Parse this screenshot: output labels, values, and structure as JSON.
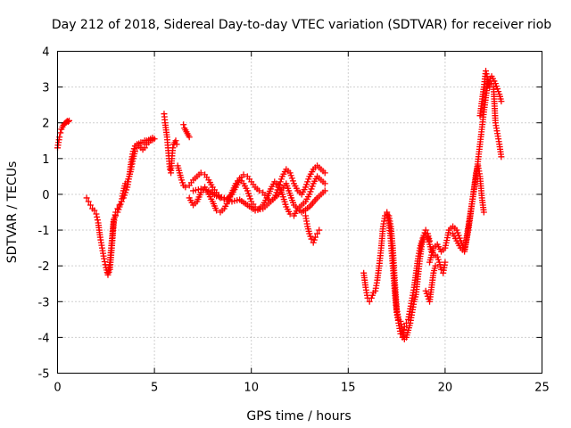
{
  "chart_data": {
    "type": "scatter",
    "title": "Day 212 of 2018, Sidereal Day-to-day VTEC variation (SDTVAR) for receiver riob",
    "xlabel": "GPS time / hours",
    "ylabel": "SDTVAR / TECUs",
    "xlim": [
      0,
      25
    ],
    "ylim": [
      -5,
      4
    ],
    "xticks": [
      0,
      5,
      10,
      15,
      20,
      25
    ],
    "xtick_labels": [
      "0",
      "5",
      "10",
      "15",
      "20",
      "25"
    ],
    "yticks": [
      -5,
      -4,
      -3,
      -2,
      -1,
      0,
      1,
      2,
      3,
      4
    ],
    "ytick_labels": [
      "-5",
      "-4",
      "-3",
      "-2",
      "-1",
      "0",
      "1",
      "2",
      "3",
      "4"
    ],
    "grid": true,
    "marker": "+",
    "color": "#ff0000",
    "series": [
      {
        "name": "SDTVAR",
        "segments": [
          {
            "x": [
              0.0,
              0.05,
              0.1,
              0.15,
              0.2,
              0.25,
              0.3,
              0.35,
              0.4,
              0.45,
              0.5,
              0.55,
              0.6
            ],
            "y": [
              1.3,
              1.45,
              1.6,
              1.72,
              1.82,
              1.88,
              1.93,
              1.97,
              2.0,
              2.02,
              2.05,
              2.03,
              2.06
            ]
          },
          {
            "x": [
              1.5,
              1.6,
              1.7,
              1.8,
              1.9,
              2.0,
              2.1,
              2.2,
              2.3,
              2.4,
              2.5,
              2.6,
              2.7,
              2.8,
              2.9,
              3.0,
              3.1,
              3.2,
              3.3,
              3.4,
              3.5,
              3.6,
              3.7,
              3.8,
              3.9,
              4.0,
              4.1,
              4.2,
              4.3,
              4.4,
              4.5,
              4.6,
              4.7,
              4.8,
              4.9,
              5.0
            ],
            "y": [
              -0.1,
              -0.2,
              -0.3,
              -0.4,
              -0.45,
              -0.55,
              -0.8,
              -1.2,
              -1.5,
              -1.8,
              -2.05,
              -2.25,
              -2.1,
              -1.5,
              -0.8,
              -0.5,
              -0.4,
              -0.3,
              -0.2,
              -0.1,
              0.05,
              0.2,
              0.5,
              0.9,
              1.2,
              1.35,
              1.4,
              1.42,
              1.45,
              1.45,
              1.5,
              1.5,
              1.52,
              1.55,
              1.58,
              1.55
            ]
          },
          {
            "x": [
              2.6,
              2.7,
              2.8,
              2.9,
              3.0,
              3.1,
              3.2,
              3.3,
              3.4,
              3.5,
              3.6,
              3.7,
              3.8,
              3.9,
              4.0,
              4.1,
              4.2,
              4.3,
              4.4,
              4.5,
              4.6,
              4.7,
              4.8,
              4.9
            ],
            "y": [
              -2.2,
              -1.9,
              -1.3,
              -0.7,
              -0.6,
              -0.5,
              -0.35,
              -0.2,
              0.1,
              0.3,
              0.35,
              0.5,
              0.7,
              1.0,
              1.2,
              1.3,
              1.35,
              1.3,
              1.25,
              1.3,
              1.4,
              1.45,
              1.5,
              1.52
            ]
          },
          {
            "x": [
              5.5,
              5.55,
              5.6,
              5.65,
              5.7,
              5.75,
              5.8,
              5.85,
              5.9,
              5.95,
              6.0,
              6.05,
              6.1,
              6.15
            ],
            "y": [
              2.25,
              2.0,
              1.8,
              1.6,
              1.3,
              1.0,
              0.7,
              0.6,
              1.0,
              1.3,
              1.4,
              1.45,
              1.5,
              1.4
            ]
          },
          {
            "x": [
              6.5,
              6.55,
              6.6,
              6.65,
              6.7,
              6.75,
              6.8
            ],
            "y": [
              1.95,
              1.85,
              1.8,
              1.75,
              1.7,
              1.65,
              1.6
            ]
          },
          {
            "x": [
              6.2,
              6.3,
              6.4,
              6.5,
              6.6,
              6.8,
              7.0,
              7.2,
              7.4,
              7.6,
              7.8,
              8.0,
              8.2,
              8.4,
              8.6,
              8.8,
              9.0,
              9.2,
              9.4,
              9.6,
              9.8,
              10.0,
              10.2,
              10.4,
              10.6,
              10.8,
              11.0,
              11.2,
              11.4,
              11.6,
              11.8,
              12.0,
              12.2,
              12.4,
              12.6,
              12.8,
              13.0,
              13.2,
              13.4,
              13.6,
              13.8
            ],
            "y": [
              0.8,
              0.6,
              0.4,
              0.25,
              0.2,
              0.25,
              0.4,
              0.5,
              0.6,
              0.55,
              0.4,
              0.2,
              0.05,
              -0.1,
              -0.15,
              -0.1,
              0.0,
              0.2,
              0.4,
              0.55,
              0.5,
              0.35,
              0.2,
              0.1,
              0.05,
              -0.1,
              -0.2,
              -0.1,
              0.2,
              0.5,
              0.7,
              0.6,
              0.3,
              0.1,
              0.0,
              0.2,
              0.5,
              0.7,
              0.8,
              0.7,
              0.6
            ]
          },
          {
            "x": [
              6.8,
              7.0,
              7.2,
              7.4,
              7.6,
              7.8,
              8.0,
              8.2,
              8.4,
              8.6,
              8.8,
              9.0,
              9.2,
              9.4,
              9.6,
              9.8,
              10.0,
              10.2,
              10.4,
              10.6,
              10.8,
              11.0,
              11.2,
              11.4,
              11.6,
              11.8,
              12.0,
              12.2,
              12.4,
              12.6,
              12.8,
              13.0,
              13.2,
              13.4,
              13.6,
              13.8
            ],
            "y": [
              -0.1,
              -0.3,
              -0.2,
              0.05,
              0.2,
              0.0,
              -0.2,
              -0.45,
              -0.5,
              -0.4,
              -0.2,
              0.05,
              0.3,
              0.45,
              0.3,
              0.1,
              -0.2,
              -0.35,
              -0.4,
              -0.3,
              -0.1,
              0.15,
              0.35,
              0.25,
              0.0,
              -0.35,
              -0.55,
              -0.6,
              -0.4,
              -0.3,
              -0.2,
              0.0,
              0.3,
              0.5,
              0.4,
              0.3
            ]
          },
          {
            "x": [
              7.0,
              7.4,
              7.8,
              8.2,
              8.6,
              9.0,
              9.4,
              9.8,
              10.2,
              10.6,
              11.0,
              11.4,
              11.8,
              12.2,
              12.6,
              13.0,
              13.4,
              13.8
            ],
            "y": [
              0.1,
              0.15,
              0.1,
              -0.05,
              -0.1,
              -0.2,
              -0.15,
              -0.3,
              -0.45,
              -0.4,
              -0.2,
              0.0,
              0.3,
              -0.3,
              -0.5,
              -0.35,
              -0.1,
              0.1
            ]
          },
          {
            "x": [
              12.8,
              12.9,
              13.0,
              13.1,
              13.2,
              13.3,
              13.4,
              13.5
            ],
            "y": [
              -0.6,
              -0.9,
              -1.1,
              -1.25,
              -1.35,
              -1.2,
              -1.1,
              -1.0
            ]
          },
          {
            "x": [
              15.8,
              15.9,
              16.0,
              16.1,
              16.2,
              16.3,
              16.4,
              16.5,
              16.6,
              16.7,
              16.8,
              16.9,
              17.0,
              17.1,
              17.2,
              17.3,
              17.4,
              17.5,
              17.6,
              17.7,
              17.8,
              17.9,
              18.0,
              18.1,
              18.2,
              18.3,
              18.4,
              18.5,
              18.6,
              18.7,
              18.8,
              18.9,
              19.0,
              19.1,
              19.2,
              19.3,
              19.4,
              19.5,
              19.6,
              19.7,
              19.8,
              19.9,
              20.0
            ],
            "y": [
              -2.2,
              -2.6,
              -2.9,
              -3.0,
              -2.9,
              -2.75,
              -2.7,
              -2.4,
              -2.0,
              -1.5,
              -0.9,
              -0.6,
              -0.55,
              -0.6,
              -0.9,
              -1.5,
              -2.4,
              -3.2,
              -3.5,
              -3.55,
              -3.8,
              -4.05,
              -4.0,
              -3.8,
              -3.6,
              -3.3,
              -3.0,
              -2.8,
              -2.3,
              -1.8,
              -1.4,
              -1.2,
              -1.1,
              -1.2,
              -1.4,
              -1.6,
              -1.7,
              -1.7,
              -1.75,
              -1.9,
              -2.1,
              -2.2,
              -1.9
            ]
          },
          {
            "x": [
              17.0,
              17.1,
              17.2,
              17.3,
              17.4,
              17.5,
              17.6,
              17.7,
              17.8,
              17.9,
              18.0,
              18.1,
              18.2,
              18.3,
              18.4,
              18.5,
              18.6,
              18.7,
              18.8,
              18.9,
              19.0,
              19.1,
              19.2
            ],
            "y": [
              -0.5,
              -0.8,
              -1.3,
              -2.0,
              -2.7,
              -3.3,
              -3.6,
              -3.9,
              -4.0,
              -3.7,
              -3.6,
              -3.5,
              -3.2,
              -2.9,
              -2.6,
              -2.2,
              -1.8,
              -1.5,
              -1.3,
              -1.15,
              -1.0,
              -1.1,
              -1.3
            ]
          },
          {
            "x": [
              19.0,
              19.1,
              19.2,
              19.3,
              19.4,
              19.5
            ],
            "y": [
              -2.7,
              -2.85,
              -3.0,
              -2.6,
              -2.2,
              -2.0
            ]
          },
          {
            "x": [
              19.2,
              19.4,
              19.6,
              19.8,
              20.0,
              20.2,
              20.4,
              20.6,
              20.8,
              21.0,
              21.2,
              21.4,
              21.6,
              21.8,
              22.0,
              22.2,
              22.4,
              22.6,
              22.8,
              22.9
            ],
            "y": [
              -1.9,
              -1.5,
              -1.4,
              -1.6,
              -1.5,
              -1.0,
              -0.9,
              -1.0,
              -1.3,
              -1.55,
              -0.9,
              -0.2,
              0.5,
              1.4,
              2.3,
              3.1,
              3.3,
              3.1,
              2.8,
              2.6
            ]
          },
          {
            "x": [
              20.4,
              20.6,
              20.8,
              21.0,
              21.2,
              21.4,
              21.5,
              21.6,
              21.7,
              21.8,
              21.9,
              22.0
            ],
            "y": [
              -1.1,
              -1.3,
              -1.5,
              -1.6,
              -1.0,
              -0.2,
              0.2,
              0.6,
              0.8,
              0.5,
              -0.1,
              -0.5
            ]
          },
          {
            "x": [
              21.8,
              21.9,
              22.0,
              22.1,
              22.2,
              22.3,
              22.4,
              22.5,
              22.6,
              22.7,
              22.8,
              22.9
            ],
            "y": [
              2.2,
              2.6,
              3.0,
              3.45,
              3.2,
              3.0,
              3.1,
              3.0,
              2.0,
              1.7,
              1.4,
              1.05
            ]
          }
        ]
      }
    ]
  }
}
